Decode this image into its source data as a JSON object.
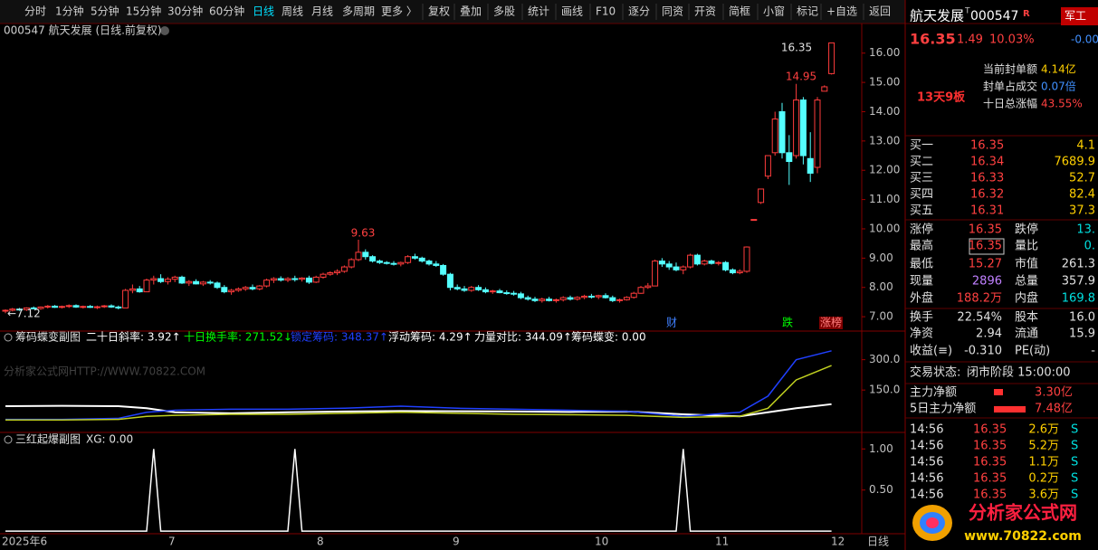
{
  "toolbar": [
    "分时",
    "1分钟",
    "5分钟",
    "15分钟",
    "30分钟",
    "60分钟",
    "日线",
    "周线",
    "月线",
    "多周期",
    "更多 〉",
    "复权",
    "叠加",
    "多股",
    "统计",
    "画线",
    "F10",
    "逐分",
    "同资",
    "开资",
    "简框",
    "小窗",
    "标记",
    "+自选",
    "返回"
  ],
  "main_chart": {
    "title": "000547 航天发展 (日线.前复权)",
    "ylim": [
      6.54,
      16.98
    ],
    "yticks": [
      {
        "value": 7,
        "label": "7.00"
      },
      {
        "value": 8,
        "label": "8.00"
      },
      {
        "value": 9,
        "label": "9.00"
      },
      {
        "value": 10,
        "label": "10.00"
      },
      {
        "value": 11,
        "label": "11.00"
      },
      {
        "value": 12,
        "label": "12.00"
      },
      {
        "value": 13,
        "label": "13.00"
      },
      {
        "value": 14,
        "label": "14.00"
      },
      {
        "value": 15,
        "label": "15.00"
      },
      {
        "value": 16,
        "label": "16.00"
      }
    ],
    "candles": [
      [
        7.2,
        7.25,
        7.12,
        7.22
      ],
      [
        7.22,
        7.3,
        7.18,
        7.26
      ],
      [
        7.26,
        7.3,
        7.2,
        7.24
      ],
      [
        7.24,
        7.32,
        7.2,
        7.3
      ],
      [
        7.3,
        7.35,
        7.25,
        7.28
      ],
      [
        7.28,
        7.35,
        7.24,
        7.33
      ],
      [
        7.33,
        7.4,
        7.28,
        7.36
      ],
      [
        7.36,
        7.4,
        7.3,
        7.32
      ],
      [
        7.32,
        7.38,
        7.28,
        7.35
      ],
      [
        7.35,
        7.42,
        7.3,
        7.38
      ],
      [
        7.38,
        7.42,
        7.3,
        7.33
      ],
      [
        7.33,
        7.38,
        7.28,
        7.35
      ],
      [
        7.35,
        7.4,
        7.3,
        7.32
      ],
      [
        7.32,
        7.38,
        7.26,
        7.34
      ],
      [
        7.34,
        7.4,
        7.3,
        7.37
      ],
      [
        7.37,
        7.42,
        7.3,
        7.33
      ],
      [
        7.33,
        7.38,
        7.25,
        7.3
      ],
      [
        7.3,
        7.95,
        7.3,
        7.9
      ],
      [
        7.9,
        8.1,
        7.8,
        7.95
      ],
      [
        7.95,
        8.05,
        7.82,
        7.85
      ],
      [
        7.85,
        8.3,
        7.85,
        8.25
      ],
      [
        8.25,
        8.4,
        8.1,
        8.3
      ],
      [
        8.3,
        8.45,
        8.15,
        8.2
      ],
      [
        8.2,
        8.35,
        8.1,
        8.28
      ],
      [
        8.28,
        8.4,
        8.18,
        8.35
      ],
      [
        8.35,
        8.4,
        8.12,
        8.15
      ],
      [
        8.15,
        8.25,
        8.05,
        8.2
      ],
      [
        8.2,
        8.28,
        8.1,
        8.12
      ],
      [
        8.12,
        8.22,
        8.05,
        8.18
      ],
      [
        8.18,
        8.25,
        8.1,
        8.15
      ],
      [
        8.15,
        8.2,
        7.95,
        8.0
      ],
      [
        8.0,
        8.08,
        7.8,
        7.85
      ],
      [
        7.85,
        7.95,
        7.75,
        7.9
      ],
      [
        7.9,
        8.0,
        7.85,
        7.95
      ],
      [
        7.95,
        8.05,
        7.88,
        8.0
      ],
      [
        8.0,
        8.1,
        7.9,
        7.95
      ],
      [
        7.95,
        8.08,
        7.9,
        8.05
      ],
      [
        8.05,
        8.3,
        8.0,
        8.25
      ],
      [
        8.25,
        8.35,
        8.15,
        8.3
      ],
      [
        8.3,
        8.38,
        8.2,
        8.25
      ],
      [
        8.25,
        8.35,
        8.18,
        8.3
      ],
      [
        8.3,
        8.4,
        8.2,
        8.28
      ],
      [
        8.28,
        8.35,
        8.2,
        8.32
      ],
      [
        8.32,
        8.4,
        8.12,
        8.18
      ],
      [
        8.18,
        8.4,
        8.15,
        8.35
      ],
      [
        8.35,
        8.5,
        8.3,
        8.45
      ],
      [
        8.45,
        8.55,
        8.4,
        8.5
      ],
      [
        8.5,
        8.62,
        8.42,
        8.55
      ],
      [
        8.55,
        8.75,
        8.5,
        8.7
      ],
      [
        8.7,
        9.0,
        8.65,
        8.95
      ],
      [
        8.95,
        9.63,
        8.9,
        9.2
      ],
      [
        9.2,
        9.3,
        8.95,
        9.05
      ],
      [
        9.05,
        9.1,
        8.85,
        8.9
      ],
      [
        8.9,
        8.95,
        8.8,
        8.85
      ],
      [
        8.85,
        8.9,
        8.78,
        8.82
      ],
      [
        8.82,
        8.9,
        8.75,
        8.8
      ],
      [
        8.8,
        8.88,
        8.72,
        8.85
      ],
      [
        8.85,
        9.1,
        8.8,
        9.05
      ],
      [
        9.05,
        9.15,
        8.95,
        9.0
      ],
      [
        9.0,
        9.05,
        8.85,
        8.9
      ],
      [
        8.9,
        8.95,
        8.75,
        8.8
      ],
      [
        8.8,
        8.9,
        8.7,
        8.75
      ],
      [
        8.75,
        8.8,
        8.4,
        8.45
      ],
      [
        8.45,
        8.5,
        7.9,
        8.0
      ],
      [
        8.0,
        8.1,
        7.9,
        7.95
      ],
      [
        7.95,
        8.05,
        7.85,
        7.9
      ],
      [
        7.9,
        8.05,
        7.85,
        8.0
      ],
      [
        8.0,
        8.08,
        7.88,
        7.92
      ],
      [
        7.92,
        8.0,
        7.8,
        7.85
      ],
      [
        7.85,
        7.92,
        7.78,
        7.88
      ],
      [
        7.88,
        7.95,
        7.8,
        7.82
      ],
      [
        7.82,
        7.9,
        7.75,
        7.8
      ],
      [
        7.8,
        7.88,
        7.72,
        7.78
      ],
      [
        7.78,
        7.85,
        7.6,
        7.65
      ],
      [
        7.65,
        7.72,
        7.55,
        7.6
      ],
      [
        7.6,
        7.68,
        7.5,
        7.55
      ],
      [
        7.55,
        7.65,
        7.48,
        7.6
      ],
      [
        7.6,
        7.68,
        7.52,
        7.55
      ],
      [
        7.55,
        7.62,
        7.48,
        7.58
      ],
      [
        7.58,
        7.7,
        7.52,
        7.65
      ],
      [
        7.65,
        7.72,
        7.55,
        7.6
      ],
      [
        7.6,
        7.7,
        7.55,
        7.66
      ],
      [
        7.66,
        7.75,
        7.6,
        7.7
      ],
      [
        7.7,
        7.78,
        7.62,
        7.68
      ],
      [
        7.68,
        7.75,
        7.6,
        7.72
      ],
      [
        7.72,
        7.8,
        7.62,
        7.65
      ],
      [
        7.65,
        7.72,
        7.5,
        7.55
      ],
      [
        7.55,
        7.62,
        7.48,
        7.58
      ],
      [
        7.58,
        7.7,
        7.55,
        7.66
      ],
      [
        7.66,
        7.85,
        7.62,
        7.8
      ],
      [
        7.8,
        8.05,
        7.78,
        8.0
      ],
      [
        8.0,
        8.15,
        7.95,
        8.05
      ],
      [
        8.05,
        8.95,
        8.05,
        8.9
      ],
      [
        8.9,
        9.0,
        8.7,
        8.8
      ],
      [
        8.8,
        8.9,
        8.6,
        8.7
      ],
      [
        8.7,
        8.85,
        8.55,
        8.6
      ],
      [
        8.6,
        8.75,
        8.45,
        8.7
      ],
      [
        8.7,
        9.15,
        8.65,
        9.1
      ],
      [
        9.1,
        9.15,
        8.75,
        8.8
      ],
      [
        8.8,
        8.95,
        8.75,
        8.9
      ],
      [
        8.9,
        8.95,
        8.78,
        8.82
      ],
      [
        8.82,
        8.9,
        8.75,
        8.85
      ],
      [
        8.85,
        8.9,
        8.55,
        8.6
      ],
      [
        8.6,
        8.65,
        8.45,
        8.5
      ],
      [
        8.5,
        8.62,
        8.45,
        8.55
      ],
      [
        8.55,
        9.4,
        8.5,
        9.38
      ],
      [
        10.32,
        10.32,
        10.32,
        10.32
      ],
      [
        10.9,
        11.36,
        10.85,
        11.36
      ],
      [
        11.8,
        12.5,
        11.7,
        12.5
      ],
      [
        12.6,
        14.0,
        12.5,
        13.75
      ],
      [
        14.0,
        14.3,
        12.4,
        12.6
      ],
      [
        12.6,
        13.2,
        11.5,
        12.3
      ],
      [
        12.5,
        14.95,
        12.4,
        14.4
      ],
      [
        14.4,
        14.5,
        12.2,
        12.5
      ],
      [
        12.4,
        13.3,
        11.6,
        11.9
      ],
      [
        12.1,
        14.5,
        11.9,
        14.4
      ],
      [
        14.7,
        14.9,
        14.7,
        14.85
      ],
      [
        15.3,
        16.35,
        15.27,
        16.35
      ]
    ],
    "annotations": [
      9.63,
      14.95,
      16.35,
      "←7.12"
    ],
    "markers": [
      "财",
      "跌",
      "涨榜"
    ]
  },
  "indicator1": {
    "title": "筹码蝶变副图",
    "readouts": [
      {
        "text": "二十日斜率: 3.92↑",
        "color": "#ffffff"
      },
      {
        "text": "十日换手率: 271.52↓",
        "color": "#00ff00"
      },
      {
        "text": "锁定筹码: 348.37↑",
        "color": "#2040ff"
      },
      {
        "text": "浮动筹码: 4.29↑",
        "color": "#ffffff"
      },
      {
        "text": "力量对比: 344.09↑",
        "color": "#ffffff"
      },
      {
        "text": "筹码蝶变: 0.00",
        "color": "#ffffff"
      }
    ],
    "watermark": "分析家公式网HTTP://WWW.70822.COM",
    "ylim": [
      -55,
      437
    ],
    "yticks": [
      {
        "value": 300,
        "label": "300.0"
      },
      {
        "value": 150,
        "label": "150.0"
      }
    ],
    "x": [
      0,
      8,
      16,
      20,
      24,
      32,
      40,
      48,
      56,
      64,
      72,
      80,
      88,
      96,
      104,
      108,
      112,
      117
    ],
    "lines": [
      {
        "color": "#ffffff",
        "values": [
          70,
          72,
          70,
          60,
          40,
          35,
          40,
          44,
          46,
          45,
          44,
          42,
          44,
          30,
          20,
          40,
          60,
          80
        ]
      },
      {
        "color": "#2040ff",
        "values": [
          5,
          5,
          10,
          40,
          50,
          55,
          55,
          60,
          70,
          60,
          55,
          50,
          45,
          20,
          40,
          120,
          300,
          344
        ]
      },
      {
        "color": "#c0d020",
        "values": [
          2,
          2,
          5,
          20,
          25,
          30,
          30,
          35,
          40,
          35,
          30,
          28,
          25,
          15,
          20,
          60,
          200,
          271
        ]
      }
    ]
  },
  "indicator2": {
    "title": "三红起爆副图",
    "readout": "XG: 0.00",
    "ylim": [
      -0.02,
      1.19
    ],
    "yticks": [
      {
        "value": 1,
        "label": "1.00"
      },
      {
        "value": 0.5,
        "label": "0.50"
      }
    ],
    "color": "#ffffff",
    "values": [
      0,
      0,
      0,
      0,
      0,
      0,
      0,
      0,
      0,
      0,
      0,
      0,
      0,
      0,
      0,
      0,
      0,
      0,
      0,
      0,
      0,
      1,
      0,
      0,
      0,
      0,
      0,
      0,
      0,
      0,
      0,
      0,
      0,
      0,
      0,
      0,
      0,
      0,
      0,
      0,
      0,
      1,
      0,
      0,
      0,
      0,
      0,
      0,
      0,
      0,
      0,
      0,
      0,
      0,
      0,
      0,
      0,
      0,
      0,
      0,
      0,
      0,
      0,
      0,
      0,
      0,
      0,
      0,
      0,
      0,
      0,
      0,
      0,
      0,
      0,
      0,
      0,
      0,
      0,
      0,
      0,
      0,
      0,
      0,
      0,
      0,
      0,
      0,
      0,
      0,
      0,
      0,
      0,
      0,
      0,
      0,
      1,
      0,
      0,
      0,
      0,
      0,
      0,
      0,
      0,
      0,
      0,
      0,
      0,
      0,
      0,
      0,
      0,
      0,
      0,
      0,
      0,
      0
    ]
  },
  "x_axis": [
    "2025年6",
    "7",
    "8",
    "9",
    "10",
    "11",
    "12",
    "日线"
  ],
  "quote": {
    "name": "航天发展",
    "flag": "T",
    "code": "000547",
    "badge": "R",
    "tag": "军工",
    "price": "16.35",
    "change": "1.49",
    "change_pct": "10.03%",
    "side_value": "-0.00",
    "seal": [
      {
        "label": "当前封单额",
        "value": "4.14亿"
      },
      {
        "label": "封单占成交",
        "value": "0.07倍"
      },
      {
        "label": "十日总涨幅",
        "value": "43.55%"
      }
    ],
    "streak": "13天9板",
    "book": [
      {
        "label": "买一",
        "price": "16.35",
        "volume": "4.1"
      },
      {
        "label": "买二",
        "price": "16.34",
        "volume": "7689.9"
      },
      {
        "label": "买三",
        "price": "16.33",
        "volume": "52.7"
      },
      {
        "label": "买四",
        "price": "16.32",
        "volume": "82.4"
      },
      {
        "label": "买五",
        "price": "16.31",
        "volume": "37.3"
      }
    ],
    "stats": [
      [
        "涨停",
        "16.35",
        "跌停",
        "13."
      ],
      [
        "最高",
        "16.35",
        "量比",
        "0."
      ],
      [
        "最低",
        "15.27",
        "市值",
        "261.3"
      ],
      [
        "现量",
        "2896",
        "总量",
        "357.9"
      ],
      [
        "外盘",
        "188.2万",
        "内盘",
        "169.8"
      ],
      [
        "换手",
        "22.54%",
        "股本",
        "16.0"
      ],
      [
        "净资",
        "2.94",
        "流通",
        "15.9"
      ],
      [
        "收益(≡)",
        "-0.310",
        "PE(动)",
        "-"
      ]
    ],
    "status_label": "交易状态:",
    "status": "闭市阶段 15:00:00",
    "flows": [
      {
        "label": "主力净额",
        "value": "3.30亿"
      },
      {
        "label": "5日主力净额",
        "value": "7.48亿"
      }
    ],
    "ticks": [
      [
        "14:56",
        "16.35",
        "2.6万",
        "S"
      ],
      [
        "14:56",
        "16.35",
        "5.2万",
        "S"
      ],
      [
        "14:56",
        "16.35",
        "1.1万",
        "S"
      ],
      [
        "14:56",
        "16.35",
        "0.2万",
        "S"
      ],
      [
        "14:56",
        "16.35",
        "3.6万",
        "S"
      ]
    ],
    "logo": {
      "title": "分析家公式网",
      "url": "www.70822.com"
    }
  }
}
